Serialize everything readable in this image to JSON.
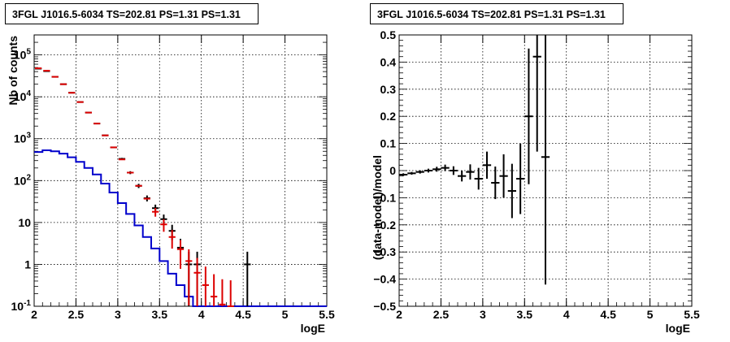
{
  "panels": {
    "left": {
      "title": "3FGL J1016.5-6034 TS=202.81 PS=1.31 PS=1.31"
    },
    "right": {
      "title": "3FGL J1016.5-6034 TS=202.81 PS=1.31 PS=1.31"
    }
  },
  "chart_data": [
    {
      "type": "line",
      "title": "3FGL J1016.5-6034 TS=202.81 PS=1.31 PS=1.31",
      "xlabel": "logE",
      "ylabel": "Nb of counts",
      "xlim": [
        2,
        5.5
      ],
      "ylim": [
        0.1,
        300000
      ],
      "log_y": true,
      "grid": true,
      "x_ticks": [
        "2",
        "2.5",
        "3",
        "3.5",
        "4",
        "4.5",
        "5",
        "5.5"
      ],
      "y_ticks": [
        "10^-1",
        "1",
        "10",
        "10^2",
        "10^3",
        "10^4",
        "10^5"
      ],
      "bin_width": 0.1,
      "series": [
        {
          "color": "#0000cc",
          "style": "step",
          "x": [
            2.05,
            2.15,
            2.25,
            2.35,
            2.45,
            2.55,
            2.65,
            2.75,
            2.85,
            2.95,
            3.05,
            3.15,
            3.25,
            3.35,
            3.45,
            3.55,
            3.65,
            3.75,
            3.85,
            3.95,
            4.05,
            4.15,
            4.25,
            4.35,
            4.45,
            4.55,
            4.65,
            4.75,
            4.85,
            4.95,
            5.05,
            5.15,
            5.25,
            5.35,
            5.45
          ],
          "y": [
            480,
            530,
            500,
            440,
            360,
            280,
            200,
            140,
            85,
            52,
            29,
            16,
            8.5,
            4.5,
            2.4,
            1.2,
            0.6,
            0.32,
            0.17,
            0.1,
            0.1,
            0.1,
            0.1,
            0.1,
            0.1,
            0.1,
            0.1,
            0.1,
            0.1,
            0.1,
            0.1,
            0.1,
            0.1,
            0.1,
            0.1
          ]
        },
        {
          "color": "#dd0000",
          "style": "markers",
          "x": [
            2.05,
            2.15,
            2.25,
            2.35,
            2.45,
            2.55,
            2.65,
            2.75,
            2.85,
            2.95,
            3.05,
            3.15,
            3.25,
            3.35,
            3.45,
            3.55,
            3.65,
            3.75,
            3.85,
            3.95,
            4.05,
            4.15,
            4.25,
            4.35
          ],
          "y": [
            48000,
            42000,
            30000,
            20000,
            12500,
            7500,
            4200,
            2300,
            1200,
            620,
            320,
            155,
            75,
            37,
            18,
            9,
            4.5,
            2.3,
            1.2,
            0.63,
            0.32,
            0.17,
            0.11,
            0.1
          ]
        },
        {
          "color": "#000000",
          "style": "errorbars",
          "x": [
            2.05,
            2.15,
            2.25,
            2.35,
            2.45,
            2.55,
            2.65,
            2.75,
            2.85,
            2.95,
            3.05,
            3.15,
            3.25,
            3.35,
            3.45,
            3.55,
            3.65,
            3.75,
            3.85,
            3.95,
            4.55
          ],
          "y": [
            47000,
            41000,
            30000,
            20000,
            12500,
            7500,
            4200,
            2300,
            1200,
            620,
            330,
            155,
            75,
            38,
            22,
            12,
            6.3,
            2.5,
            1,
            1,
            1
          ]
        }
      ]
    },
    {
      "type": "scatter",
      "title": "3FGL J1016.5-6034 TS=202.81 PS=1.31 PS=1.31",
      "xlabel": "logE",
      "ylabel": "(data-model)/model",
      "xlim": [
        2,
        5.5
      ],
      "ylim": [
        -0.5,
        0.5
      ],
      "grid": true,
      "x_ticks": [
        "2",
        "2.5",
        "3",
        "3.5",
        "4",
        "4.5",
        "5",
        "5.5"
      ],
      "y_ticks": [
        "-0.5",
        "-0.4",
        "-0.3",
        "-0.2",
        "-0.1",
        "0",
        "0.1",
        "0.2",
        "0.3",
        "0.4",
        "0.5"
      ],
      "series": [
        {
          "color": "#000000",
          "x": [
            2.05,
            2.15,
            2.25,
            2.35,
            2.45,
            2.55,
            2.65,
            2.75,
            2.85,
            2.95,
            3.05,
            3.15,
            3.25,
            3.35,
            3.45,
            3.55,
            3.65,
            3.75
          ],
          "y": [
            -0.015,
            -0.01,
            -0.005,
            0.0,
            0.005,
            0.01,
            0.0,
            -0.02,
            -0.005,
            -0.03,
            0.02,
            -0.045,
            -0.02,
            -0.075,
            -0.03,
            0.2,
            0.42,
            0.05
          ],
          "err": [
            0.005,
            0.005,
            0.006,
            0.007,
            0.009,
            0.012,
            0.016,
            0.02,
            0.028,
            0.04,
            0.05,
            0.06,
            0.08,
            0.1,
            0.13,
            0.25,
            0.35,
            0.47
          ]
        }
      ]
    }
  ]
}
